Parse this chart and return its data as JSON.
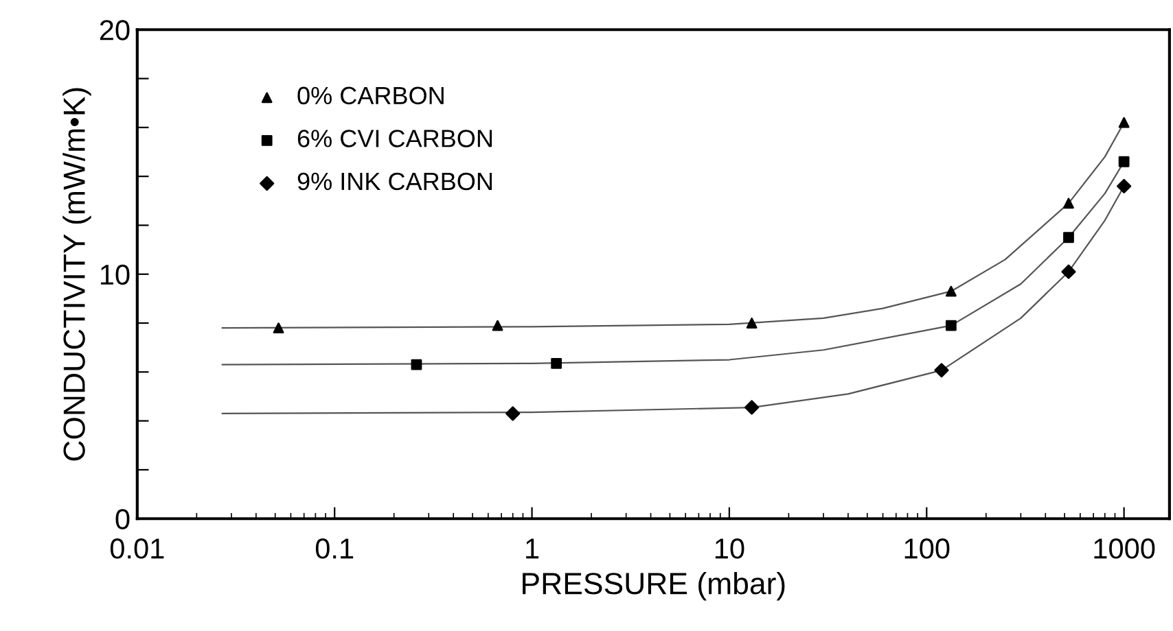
{
  "chart_data": {
    "type": "scatter",
    "xlabel": "PRESSURE (mbar)",
    "ylabel": "CONDUCTIVITY (mW/m•K)",
    "log": "x",
    "xlim": [
      0.01,
      1700
    ],
    "xticks": [
      0.01,
      0.1,
      1,
      10,
      100,
      1000
    ],
    "ylim": [
      0,
      20
    ],
    "yticks": [
      0,
      {
        "value": 2,
        "label": null
      },
      {
        "value": 4,
        "label": null
      },
      {
        "value": 6,
        "label": null
      },
      {
        "value": 8,
        "label": null
      },
      10,
      {
        "value": 12,
        "label": null
      },
      {
        "value": 14,
        "label": null
      },
      {
        "value": 16,
        "label": null
      },
      {
        "value": 18,
        "label": null
      },
      20
    ],
    "grid": false,
    "legend": "top left",
    "series": [
      {
        "name": "0% CARBON",
        "marker": "triangle",
        "color": "#000000",
        "x": [
          0.052,
          0.67,
          13,
          133,
          524,
          1000
        ],
        "values": [
          7.8,
          7.9,
          8.0,
          9.3,
          12.9,
          16.2
        ]
      },
      {
        "name": "6% CVI CARBON",
        "marker": "square",
        "color": "#000000",
        "x": [
          0.26,
          1.33,
          133,
          524,
          1000
        ],
        "values": [
          6.3,
          6.35,
          7.9,
          11.5,
          14.6
        ]
      },
      {
        "name": "9% INK CARBON",
        "marker": "diamond",
        "color": "#000000",
        "x": [
          0.8,
          13,
          119,
          524,
          1000
        ],
        "values": [
          4.3,
          4.55,
          6.07,
          10.1,
          13.6
        ]
      },
      {
        "type": "line",
        "color": "#555555",
        "x": [
          0.027,
          1,
          10,
          30,
          60,
          133,
          250,
          524,
          800,
          1000
        ],
        "values": [
          7.8,
          7.85,
          7.95,
          8.2,
          8.6,
          9.3,
          10.6,
          12.9,
          14.8,
          16.2
        ]
      },
      {
        "type": "line",
        "color": "#555555",
        "x": [
          0.027,
          1,
          10,
          30,
          133,
          300,
          524,
          800,
          1000
        ],
        "values": [
          6.3,
          6.35,
          6.5,
          6.9,
          7.9,
          9.6,
          11.5,
          13.3,
          14.6
        ]
      },
      {
        "type": "line",
        "color": "#555555",
        "x": [
          0.027,
          1,
          13,
          40,
          119,
          300,
          524,
          800,
          1000
        ],
        "values": [
          4.3,
          4.35,
          4.55,
          5.1,
          6.07,
          8.2,
          10.1,
          12.2,
          13.6
        ]
      }
    ]
  }
}
